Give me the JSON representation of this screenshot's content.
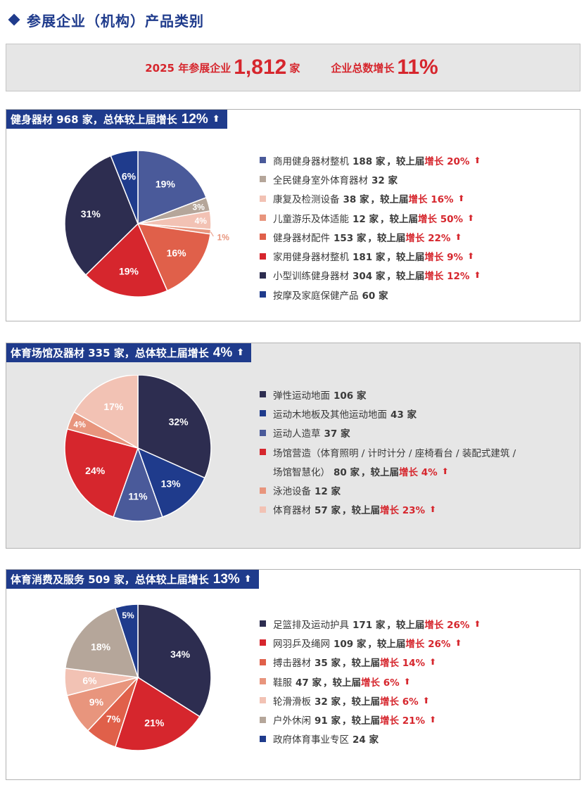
{
  "page_title": "参展企业（机构）产品类别",
  "summary": {
    "label1": "2025 年参展企业",
    "value1": "1,812",
    "unit1": "家",
    "label2": "企业总数增长",
    "value2": "11%"
  },
  "sections": [
    {
      "header": {
        "text": "健身器材 968 家，总体较上届增长",
        "big": "12%"
      },
      "items": [
        {
          "name": "商用健身器材整机",
          "count": "188 家",
          "cmp": "，较上届",
          "inc": "增长 20%",
          "arrow": true,
          "color": "#4a5a9a"
        },
        {
          "name": "全民健身室外体育器材",
          "count": "32 家",
          "color": "#b5a69a"
        },
        {
          "name": "康复及检测设备",
          "count": "38 家",
          "cmp": "，较上届",
          "inc": "增长 16%",
          "arrow": true,
          "color": "#f2c2b4"
        },
        {
          "name": "儿童游乐及体适能",
          "count": "12 家",
          "cmp": "，较上届",
          "inc": "增长 50%",
          "arrow": true,
          "color": "#e8957d"
        },
        {
          "name": "健身器材配件",
          "count": "153 家",
          "cmp": "，较上届",
          "inc": "增长 22%",
          "arrow": true,
          "color": "#e0604a"
        },
        {
          "name": "家用健身器材整机",
          "count": "181 家",
          "cmp": "，较上届",
          "inc": "增长 9%",
          "arrow": true,
          "color": "#d6262d"
        },
        {
          "name": "小型训练健身器材",
          "count": "304 家",
          "cmp": "，较上届",
          "inc": "增长 12%",
          "arrow": true,
          "color": "#2d2d50"
        },
        {
          "name": "按摩及家庭保健产品",
          "count": "60 家",
          "color": "#1f3b8c"
        }
      ]
    },
    {
      "header": {
        "text": "体育场馆及器材 335 家，总体较上届增长",
        "big": "4%"
      },
      "items": [
        {
          "name": "弹性运动地面",
          "count": "106 家",
          "color": "#2d2d50"
        },
        {
          "name": "运动木地板及其他运动地面",
          "count": "43 家",
          "color": "#1f3b8c"
        },
        {
          "name": "运动人造草",
          "count": "37 家",
          "color": "#4a5a9a"
        },
        {
          "name": "场馆营造（体育照明 / 计时计分 / 座椅看台 / 装配式建筑 /",
          "name2": "场馆智慧化）",
          "count": "80 家",
          "cmp": "，较上届",
          "inc": "增长 4%",
          "arrow": true,
          "color": "#d6262d"
        },
        {
          "name": "泳池设备",
          "count": "12 家",
          "color": "#e8957d"
        },
        {
          "name": "体育器材",
          "count": "57 家",
          "cmp": "，较上届",
          "inc": "增长 23%",
          "arrow": true,
          "color": "#f2c2b4"
        }
      ]
    },
    {
      "header": {
        "text": "体育消费及服务 509 家，总体较上届增长",
        "big": "13%"
      },
      "items": [
        {
          "name": "足篮排及运动护具",
          "count": "171 家",
          "cmp": "，较上届",
          "inc": "增长 26%",
          "arrow": true,
          "color": "#2d2d50"
        },
        {
          "name": "网羽乒及绳网",
          "count": "109 家",
          "cmp": "，较上届",
          "inc": "增长 26%",
          "arrow": true,
          "color": "#d6262d"
        },
        {
          "name": "搏击器材",
          "count": "35 家",
          "cmp": "，较上届",
          "inc": "增长 14%",
          "arrow": true,
          "color": "#e0604a"
        },
        {
          "name": "鞋服",
          "count": "47 家",
          "cmp": "，较上届",
          "inc": "增长 6%",
          "arrow": true,
          "color": "#e8957d"
        },
        {
          "name": "轮滑滑板",
          "count": "32 家",
          "cmp": "，较上届",
          "inc": "增长 6%",
          "arrow": true,
          "color": "#f2c2b4"
        },
        {
          "name": "户外休闲",
          "count": "91 家",
          "cmp": "，较上届",
          "inc": "增长 21%",
          "arrow": true,
          "color": "#b5a69a"
        },
        {
          "name": "政府体育事业专区",
          "count": "24 家",
          "color": "#1f3b8c"
        }
      ]
    }
  ],
  "chart_data": [
    {
      "type": "pie",
      "categories": [
        "商用健身器材整机",
        "全民健身室外体育器材",
        "康复及检测设备",
        "儿童游乐及体适能",
        "健身器材配件",
        "家用健身器材整机",
        "小型训练健身器材",
        "按摩及家庭保健产品"
      ],
      "values": [
        19,
        3,
        4,
        1,
        16,
        19,
        31,
        6
      ],
      "labels": [
        "19%",
        "3%",
        "4%",
        "1%",
        "16%",
        "19%",
        "31%",
        "6%"
      ],
      "colors": [
        "#4a5a9a",
        "#b5a69a",
        "#f2c2b4",
        "#e8957d",
        "#e0604a",
        "#d6262d",
        "#2d2d50",
        "#1f3b8c"
      ],
      "label_colors": [
        "#ffffff",
        "#ffffff",
        "#ffffff",
        "#e8957d",
        "#ffffff",
        "#ffffff",
        "#ffffff",
        "#ffffff"
      ]
    },
    {
      "type": "pie",
      "categories": [
        "弹性运动地面",
        "运动木地板及其他运动地面",
        "运动人造草",
        "场馆营造（体育照明 / 计时计分 / 座椅看台 / 装配式建筑 / 场馆智慧化）",
        "泳池设备",
        "体育器材"
      ],
      "values": [
        32,
        13,
        11,
        24,
        4,
        17
      ],
      "labels": [
        "32%",
        "13%",
        "11%",
        "24%",
        "4%",
        "17%"
      ],
      "colors": [
        "#2d2d50",
        "#1f3b8c",
        "#4a5a9a",
        "#d6262d",
        "#e8957d",
        "#f2c2b4"
      ],
      "label_colors": [
        "#ffffff",
        "#ffffff",
        "#ffffff",
        "#ffffff",
        "#ffffff",
        "#ffffff"
      ]
    },
    {
      "type": "pie",
      "categories": [
        "足篮排及运动护具",
        "网羽乒及绳网",
        "搏击器材",
        "鞋服",
        "轮滑滑板",
        "户外休闲",
        "政府体育事业专区"
      ],
      "values": [
        34,
        21,
        7,
        9,
        6,
        18,
        5
      ],
      "labels": [
        "34%",
        "21%",
        "7%",
        "9%",
        "6%",
        "18%",
        "5%"
      ],
      "colors": [
        "#2d2d50",
        "#d6262d",
        "#e0604a",
        "#e8957d",
        "#f2c2b4",
        "#b5a69a",
        "#1f3b8c"
      ],
      "label_colors": [
        "#ffffff",
        "#ffffff",
        "#ffffff",
        "#ffffff",
        "#ffffff",
        "#ffffff",
        "#ffffff"
      ]
    }
  ]
}
